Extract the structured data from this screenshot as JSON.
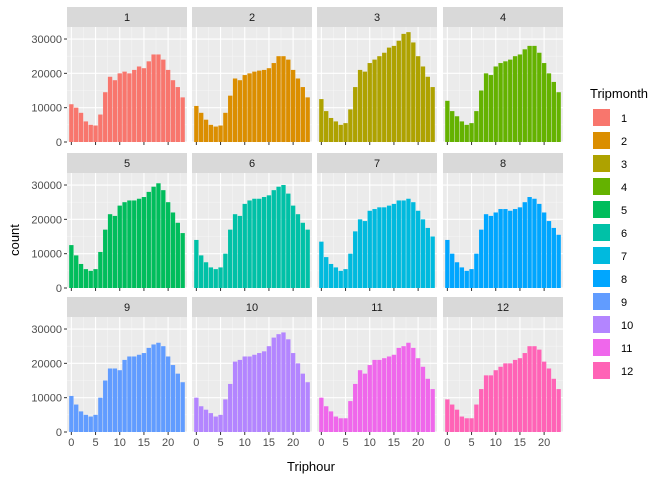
{
  "chart_data": {
    "type": "bar",
    "facet_by": "Tripmonth",
    "xlabel": "Triphour",
    "ylabel": "count",
    "x": [
      0,
      1,
      2,
      3,
      4,
      5,
      6,
      7,
      8,
      9,
      10,
      11,
      12,
      13,
      14,
      15,
      16,
      17,
      18,
      19,
      20,
      21,
      22,
      23
    ],
    "xticks": [
      0,
      5,
      10,
      15,
      20
    ],
    "xlim": [
      -0.9,
      23.9
    ],
    "yticks": [
      0,
      10000,
      20000,
      30000
    ],
    "ylim": [
      0,
      33500
    ],
    "legend": {
      "title": "Tripmonth",
      "position": "right",
      "entries": [
        "1",
        "2",
        "3",
        "4",
        "5",
        "6",
        "7",
        "8",
        "9",
        "10",
        "11",
        "12"
      ]
    },
    "colors": [
      "#F8766D",
      "#DB8E00",
      "#AEA200",
      "#64B200",
      "#00BD5C",
      "#00C1A7",
      "#00BADE",
      "#00A6FF",
      "#619CFF",
      "#B385FF",
      "#EF67EB",
      "#FF63B6"
    ],
    "series": [
      {
        "name": "1",
        "values": [
          11000,
          10000,
          8500,
          6000,
          5000,
          4800,
          8000,
          14500,
          19000,
          18000,
          20000,
          20500,
          20000,
          21000,
          22000,
          21500,
          23500,
          25500,
          25500,
          24000,
          21000,
          18000,
          16000,
          13000
        ]
      },
      {
        "name": "2",
        "values": [
          10500,
          8500,
          6500,
          5000,
          4500,
          4800,
          8500,
          13500,
          18500,
          18000,
          19500,
          20000,
          20500,
          20800,
          21000,
          21500,
          23000,
          25000,
          25000,
          24000,
          21000,
          18500,
          16000,
          13000
        ]
      },
      {
        "name": "3",
        "values": [
          12500,
          9000,
          7000,
          6000,
          5000,
          5500,
          9500,
          16000,
          21000,
          20500,
          23000,
          24000,
          25000,
          26000,
          27500,
          28000,
          29500,
          31500,
          32000,
          29000,
          25000,
          22000,
          19000,
          16000
        ]
      },
      {
        "name": "4",
        "values": [
          12000,
          9000,
          7500,
          6000,
          5000,
          5500,
          9000,
          15000,
          20000,
          19500,
          22000,
          23000,
          23500,
          24000,
          25000,
          25500,
          27000,
          28000,
          28000,
          26000,
          23000,
          20000,
          17500,
          14500
        ]
      },
      {
        "name": "5",
        "values": [
          12500,
          9500,
          7000,
          5500,
          5000,
          5500,
          10500,
          17000,
          21500,
          21000,
          24000,
          25000,
          25500,
          25500,
          26000,
          26500,
          28000,
          29500,
          30500,
          28500,
          25000,
          22000,
          19000,
          16000
        ]
      },
      {
        "name": "6",
        "values": [
          14000,
          9500,
          7500,
          6000,
          5500,
          6000,
          10000,
          17000,
          21500,
          21000,
          24500,
          25500,
          26000,
          26000,
          26500,
          27000,
          28500,
          29500,
          30000,
          27500,
          24000,
          21500,
          19000,
          17000
        ]
      },
      {
        "name": "7",
        "values": [
          13500,
          9000,
          7000,
          6000,
          5000,
          5500,
          10000,
          16500,
          20000,
          19500,
          22500,
          23000,
          23500,
          23500,
          24000,
          24500,
          25500,
          25500,
          26000,
          25000,
          22500,
          20000,
          17500,
          15000
        ]
      },
      {
        "name": "8",
        "values": [
          14000,
          10000,
          7500,
          6000,
          5000,
          5500,
          10000,
          17000,
          21500,
          21000,
          22000,
          23000,
          23000,
          22500,
          23000,
          23500,
          25000,
          26500,
          26000,
          24500,
          22000,
          19500,
          17500,
          15500
        ]
      },
      {
        "name": "9",
        "values": [
          10500,
          8000,
          6000,
          5000,
          4500,
          5000,
          10000,
          15000,
          18500,
          18500,
          18000,
          21000,
          22000,
          22000,
          22500,
          23000,
          24500,
          25500,
          26000,
          25000,
          22000,
          19500,
          17000,
          14500
        ]
      },
      {
        "name": "10",
        "values": [
          10000,
          7500,
          6500,
          5500,
          4500,
          5000,
          9500,
          14000,
          20500,
          21000,
          22000,
          22000,
          22500,
          23000,
          23500,
          25000,
          27500,
          28500,
          29000,
          27000,
          23000,
          20000,
          17000,
          14500
        ]
      },
      {
        "name": "11",
        "values": [
          10000,
          7500,
          6000,
          4500,
          4000,
          4000,
          9000,
          14000,
          18000,
          17000,
          19500,
          21000,
          21000,
          21500,
          22000,
          22500,
          24500,
          25000,
          26000,
          24500,
          21500,
          19000,
          15500,
          12500
        ]
      },
      {
        "name": "12",
        "values": [
          9500,
          8000,
          6500,
          4500,
          4000,
          4000,
          8000,
          12500,
          16500,
          16500,
          18000,
          19000,
          20000,
          20000,
          21000,
          21500,
          23000,
          25000,
          25000,
          24000,
          20500,
          18500,
          15500,
          12500
        ]
      }
    ]
  }
}
